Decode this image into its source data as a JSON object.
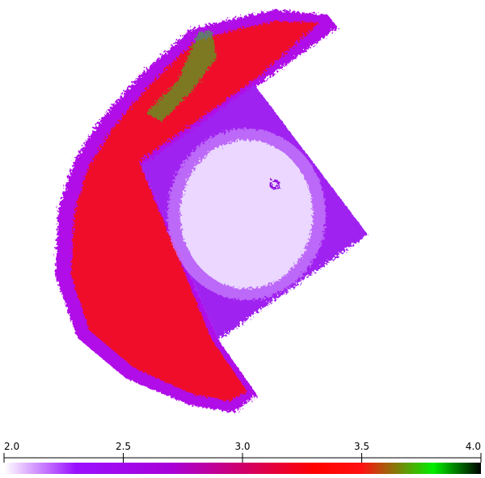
{
  "colorbar": {
    "range": [
      2.0,
      4.0
    ],
    "ticks": [
      {
        "value": 2.0,
        "label": "2.0"
      },
      {
        "value": 2.5,
        "label": "2.5"
      },
      {
        "value": 3.0,
        "label": "3.0"
      },
      {
        "value": 3.5,
        "label": "3.5"
      },
      {
        "value": 4.0,
        "label": "4.0"
      }
    ],
    "stops": [
      {
        "value": 2.0,
        "color": "#ffffff"
      },
      {
        "value": 2.3,
        "color": "#9a10ff"
      },
      {
        "value": 2.7,
        "color": "#a800d8"
      },
      {
        "value": 3.0,
        "color": "#d0006a"
      },
      {
        "value": 3.3,
        "color": "#ff0000"
      },
      {
        "value": 3.5,
        "color": "#ff1010"
      },
      {
        "value": 3.8,
        "color": "#00ee00"
      },
      {
        "value": 4.0,
        "color": "#000000"
      }
    ]
  }
}
